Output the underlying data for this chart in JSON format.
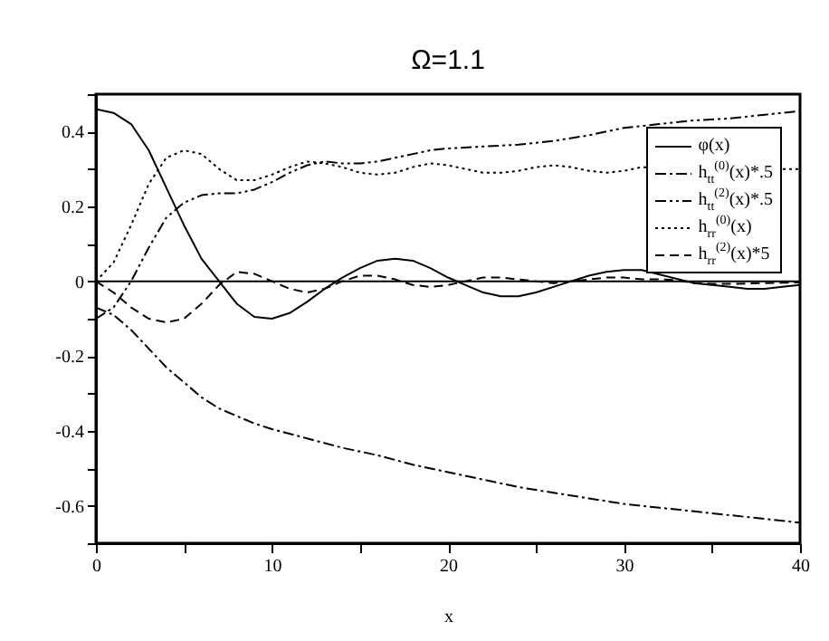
{
  "chart_data": {
    "type": "line",
    "title": "Ω=1.1",
    "xlabel": "x",
    "x": [
      0,
      1,
      2,
      3,
      4,
      5,
      6,
      7,
      8,
      9,
      10,
      11,
      12,
      13,
      14,
      15,
      16,
      17,
      18,
      19,
      20,
      21,
      22,
      23,
      24,
      25,
      26,
      27,
      28,
      29,
      30,
      31,
      32,
      33,
      34,
      35,
      36,
      37,
      38,
      39,
      40
    ],
    "series": [
      {
        "name": "φ(x)",
        "color": "#000000",
        "line_style": "solid",
        "x": [
          0,
          1,
          2,
          3,
          4,
          5,
          6,
          7,
          8,
          9,
          10,
          11,
          12,
          13,
          14,
          15,
          16,
          17,
          18,
          19,
          20,
          21,
          22,
          23,
          24,
          25,
          26,
          27,
          28,
          29,
          30,
          31,
          34,
          35,
          36,
          37,
          38,
          39,
          40
        ],
        "values": [
          0.46,
          0.45,
          0.42,
          0.35,
          0.25,
          0.15,
          0.06,
          0,
          -0.06,
          -0.095,
          -0.1,
          -0.085,
          -0.055,
          -0.02,
          0.01,
          0.035,
          0.055,
          0.06,
          0.055,
          0.035,
          0.01,
          -0.01,
          -0.03,
          -0.04,
          -0.04,
          -0.03,
          -0.015,
          0,
          0.015,
          0.025,
          0.03,
          0.03,
          -0.005,
          -0.01,
          -0.015,
          -0.02,
          -0.02,
          -0.015,
          -0.01
        ]
      },
      {
        "name": "h$_{tt}$$^{(0)}$(x)*.5",
        "color": "#000000",
        "line_style": "dashdot",
        "x": [
          0,
          1,
          2,
          3,
          4,
          5,
          6,
          7,
          8,
          9,
          10,
          12,
          14,
          16,
          18,
          20,
          22,
          24,
          26,
          28,
          30,
          32,
          34,
          36,
          38,
          40
        ],
        "values": [
          -0.07,
          -0.09,
          -0.13,
          -0.18,
          -0.23,
          -0.27,
          -0.31,
          -0.34,
          -0.36,
          -0.38,
          -0.395,
          -0.42,
          -0.445,
          -0.465,
          -0.49,
          -0.51,
          -0.53,
          -0.55,
          -0.565,
          -0.58,
          -0.595,
          -0.605,
          -0.615,
          -0.625,
          -0.635,
          -0.645
        ]
      },
      {
        "name": "h$_{tt}$$^{(2)}$(x)*.5",
        "color": "#000000",
        "line_style": "dashdotdot",
        "x": [
          0,
          1,
          2,
          3,
          4,
          5,
          6,
          7,
          8,
          9,
          10,
          11,
          12,
          13,
          14,
          15,
          16,
          17,
          18,
          19,
          20,
          22,
          24,
          26,
          28,
          30,
          32,
          34,
          36,
          38,
          40
        ],
        "values": [
          -0.1,
          -0.07,
          0,
          0.09,
          0.17,
          0.21,
          0.23,
          0.235,
          0.235,
          0.245,
          0.265,
          0.29,
          0.31,
          0.32,
          0.315,
          0.315,
          0.32,
          0.33,
          0.34,
          0.35,
          0.355,
          0.36,
          0.365,
          0.375,
          0.39,
          0.41,
          0.42,
          0.43,
          0.435,
          0.445,
          0.455
        ]
      },
      {
        "name": "h$_{rr}$$^{(0)}$(x)",
        "color": "#000000",
        "line_style": "dotted",
        "x": [
          0,
          1,
          2,
          3,
          4,
          5,
          6,
          7,
          8,
          9,
          10,
          11,
          12,
          13,
          14,
          15,
          16,
          17,
          18,
          19,
          20,
          21,
          22,
          23,
          24,
          25,
          26,
          27,
          28,
          29,
          30,
          31,
          39,
          40
        ],
        "values": [
          0,
          0.05,
          0.15,
          0.26,
          0.33,
          0.35,
          0.34,
          0.3,
          0.27,
          0.27,
          0.285,
          0.305,
          0.32,
          0.315,
          0.305,
          0.29,
          0.285,
          0.29,
          0.305,
          0.315,
          0.31,
          0.3,
          0.29,
          0.29,
          0.295,
          0.305,
          0.31,
          0.305,
          0.295,
          0.29,
          0.295,
          0.305,
          0.3,
          0.3
        ]
      },
      {
        "name": "h$_{rr}$$^{(2)}$(x)*5",
        "color": "#000000",
        "line_style": "dashed",
        "values": [
          0,
          -0.03,
          -0.07,
          -0.1,
          -0.11,
          -0.1,
          -0.06,
          -0.01,
          0.025,
          0.02,
          0,
          -0.02,
          -0.03,
          -0.02,
          0,
          0.015,
          0.015,
          0.005,
          -0.01,
          -0.015,
          -0.01,
          0,
          0.01,
          0.01,
          0.005,
          0,
          -0.005,
          0,
          0.005,
          0.01,
          0.01,
          0.005,
          0.005,
          0.003,
          -0.005,
          -0.007,
          -0.007,
          -0.006,
          -0.005,
          -0.004,
          -0.003
        ]
      }
    ],
    "xlim": [
      0,
      40
    ],
    "xticks": [
      0,
      {
        "value": 5,
        "label": null
      },
      10,
      {
        "value": 15,
        "label": null
      },
      20,
      {
        "value": 25,
        "label": null
      },
      30,
      {
        "value": 35,
        "label": null
      },
      40
    ],
    "ylim": [
      -0.7,
      0.5
    ],
    "yticks": [
      {
        "value": -0.7,
        "label": null
      },
      -0.6,
      {
        "value": -0.5,
        "label": null
      },
      -0.4,
      {
        "value": -0.3,
        "label": null
      },
      -0.2,
      {
        "value": -0.1,
        "label": null
      },
      0,
      {
        "value": 0.1,
        "label": null
      },
      0.2,
      {
        "value": 0.3,
        "label": null
      },
      0.4,
      {
        "value": 0.5,
        "label": null
      }
    ],
    "ref_lines": [
      {
        "axis": "y",
        "value": 0,
        "color": "#000000",
        "line_style": "solid"
      }
    ],
    "grid": false,
    "legend": "top right"
  }
}
